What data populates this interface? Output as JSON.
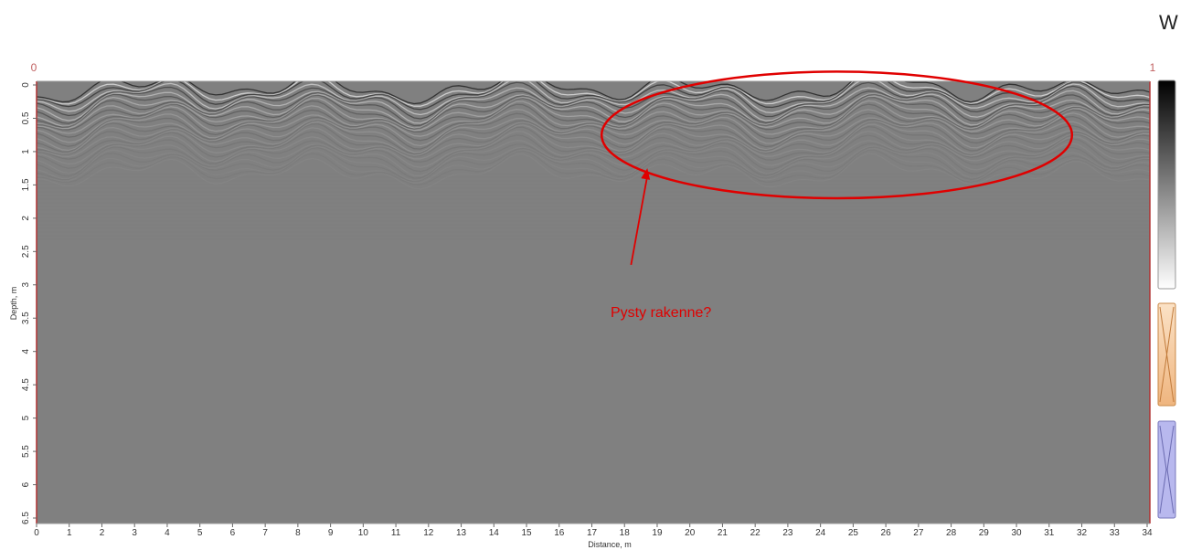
{
  "corner": {
    "direction": "W"
  },
  "chart_data": {
    "type": "heatmap",
    "title": "",
    "xlabel": "Distance, m",
    "ylabel": "Depth, m",
    "x_ticks": [
      "0",
      "1",
      "2",
      "3",
      "4",
      "5",
      "6",
      "7",
      "8",
      "9",
      "10",
      "11",
      "12",
      "13",
      "14",
      "15",
      "16",
      "17",
      "18",
      "19",
      "20",
      "21",
      "22",
      "23",
      "24",
      "25",
      "26",
      "27",
      "28",
      "29",
      "30",
      "31",
      "32",
      "33",
      "34"
    ],
    "y_ticks": [
      "0",
      "0.5",
      "1",
      "1.5",
      "2",
      "2.5",
      "3",
      "3.5",
      "4",
      "4.5",
      "5",
      "5.5",
      "6",
      "6.5"
    ],
    "xlim": [
      0,
      34
    ],
    "ylim": [
      0,
      6.6
    ],
    "top_markers": [
      "0",
      "1"
    ],
    "annotation": {
      "text": "Pysty rakenne?",
      "ellipse_center": [
        24.5,
        0.75
      ],
      "ellipse_radii": [
        7.2,
        0.95
      ],
      "arrow_from": [
        18.2,
        2.7
      ],
      "arrow_to": [
        18.7,
        1.25
      ],
      "color": "#e00000"
    },
    "colorscale": [
      "#ffffff",
      "#808080",
      "#000000"
    ],
    "grid": false
  },
  "colors": {
    "background_gray": "#808080",
    "axis_red": "#b03030",
    "annotation_red": "#e00000",
    "tick_text": "#333333",
    "marker_text": "#c06060",
    "panel_orange": "#f4c898",
    "panel_blue": "#b8b8ee"
  }
}
